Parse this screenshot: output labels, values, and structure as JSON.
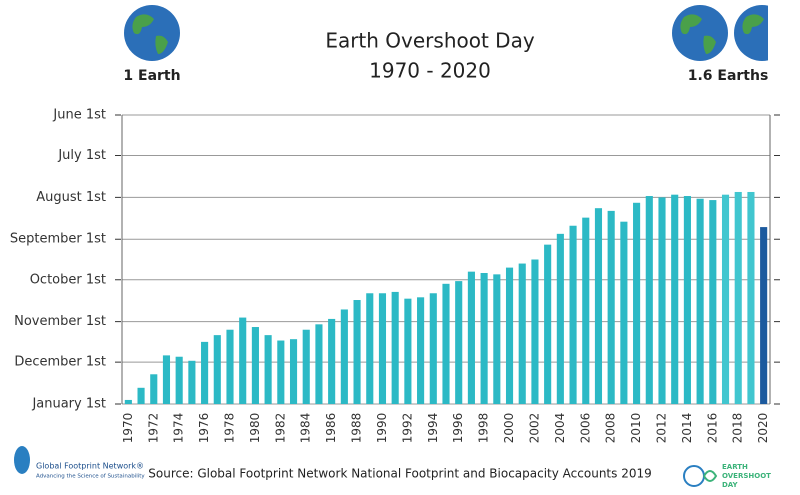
{
  "chart_data": {
    "type": "bar",
    "title": "Earth Overshoot Day",
    "subtitle": "1970 - 2020",
    "left_caption": "1 Earth",
    "right_caption": "1.6 Earths",
    "source": "Source: Global Footprint Network National Footprint and Biocapacity Accounts 2019",
    "x": [
      1970,
      1971,
      1972,
      1973,
      1974,
      1975,
      1976,
      1977,
      1978,
      1979,
      1980,
      1981,
      1982,
      1983,
      1984,
      1985,
      1986,
      1987,
      1988,
      1989,
      1990,
      1991,
      1992,
      1993,
      1994,
      1995,
      1996,
      1997,
      1998,
      1999,
      2000,
      2001,
      2002,
      2003,
      2004,
      2005,
      2006,
      2007,
      2008,
      2009,
      2010,
      2011,
      2012,
      2013,
      2014,
      2015,
      2016,
      2017,
      2018,
      2019,
      2020
    ],
    "values": [
      363,
      354,
      344,
      330,
      331,
      334,
      320,
      315,
      311,
      302,
      309,
      315,
      319,
      318,
      311,
      307,
      303,
      296,
      289,
      284,
      284,
      283,
      288,
      287,
      284,
      277,
      275,
      268,
      269,
      270,
      265,
      262,
      259,
      248,
      240,
      234,
      228,
      221,
      223,
      231,
      217,
      212,
      213,
      211,
      212,
      214,
      215,
      211,
      209,
      209,
      235
    ],
    "colors": [
      "#2cb9c5",
      "#2cb9c5",
      "#2cb9c5",
      "#2cb9c5",
      "#2cb9c5",
      "#2cb9c5",
      "#2cb9c5",
      "#2cb9c5",
      "#2cb9c5",
      "#2cb9c5",
      "#2cb9c5",
      "#2cb9c5",
      "#2cb9c5",
      "#2cb9c5",
      "#2cb9c5",
      "#2cb9c5",
      "#2cb9c5",
      "#2cb9c5",
      "#2cb9c5",
      "#2cb9c5",
      "#2cb9c5",
      "#2cb9c5",
      "#2cb9c5",
      "#2cb9c5",
      "#2cb9c5",
      "#2cb9c5",
      "#2cb9c5",
      "#2cb9c5",
      "#2cb9c5",
      "#2cb9c5",
      "#2cb9c5",
      "#2cb9c5",
      "#2cb9c5",
      "#2cb9c5",
      "#2cb9c5",
      "#2cb9c5",
      "#2cb9c5",
      "#2cb9c5",
      "#2cb9c5",
      "#2cb9c5",
      "#2cb9c5",
      "#2cb9c5",
      "#2cb9c5",
      "#2cb9c5",
      "#2cb9c5",
      "#2cb9c5",
      "#2cb9c5",
      "#41c6cf",
      "#41c6cf",
      "#41c6cf",
      "#1c5a9e"
    ],
    "xlim": [
      1969.5,
      2020.5
    ],
    "xticks": [
      1970,
      1972,
      1974,
      1976,
      1978,
      1980,
      1982,
      1984,
      1986,
      1988,
      1990,
      1992,
      1994,
      1996,
      1998,
      2000,
      2002,
      2004,
      2006,
      2008,
      2010,
      2012,
      2014,
      2016,
      2018,
      2020
    ],
    "ylim": [
      366,
      152
    ],
    "yticks": [
      {
        "value": 152,
        "label": "June 1st"
      },
      {
        "value": 182,
        "label": "July 1st"
      },
      {
        "value": 213,
        "label": "August 1st"
      },
      {
        "value": 244,
        "label": "September 1st"
      },
      {
        "value": 274,
        "label": "October 1st"
      },
      {
        "value": 305,
        "label": "November 1st"
      },
      {
        "value": 335,
        "label": "December 1st"
      },
      {
        "value": 366,
        "label": "January 1st"
      }
    ],
    "grid": true
  },
  "logos": {
    "gfn_name": "Global Footprint Network®",
    "gfn_tagline": "Advancing the Science of Sustainability",
    "eod_line1": "EARTH",
    "eod_line2": "OVERSHOOT",
    "eod_line3": "DAY"
  }
}
